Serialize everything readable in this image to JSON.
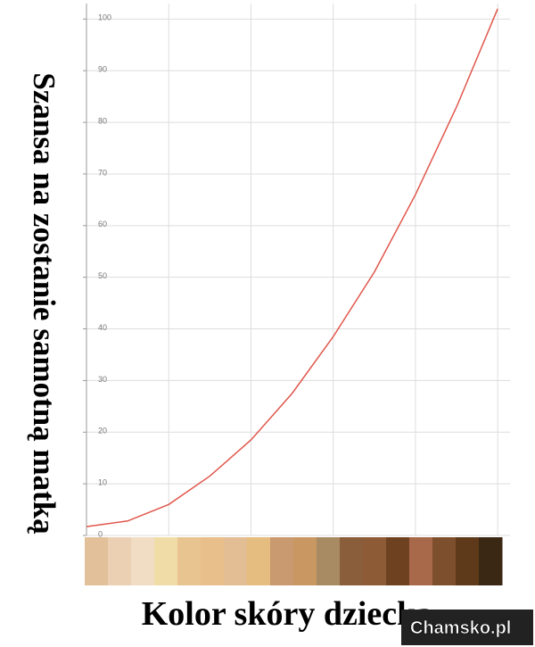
{
  "chart_data": {
    "type": "line",
    "ylabel": "Szansa na zostanie samotną matką",
    "xlabel": "Kolor skóry dziecka",
    "watermark": "Chamsko.pl",
    "x": [
      0,
      0.5,
      1,
      1.5,
      2,
      2.5,
      3,
      3.5,
      4,
      4.5,
      5
    ],
    "series": [
      {
        "color": "#e0574c",
        "values": [
          1.7,
          2.8,
          6,
          11.5,
          18.5,
          27.5,
          38.5,
          51,
          66,
          83,
          102
        ]
      }
    ],
    "xlim": [
      0,
      5.15
    ],
    "xgrid": [
      0,
      1,
      2,
      3,
      4,
      5
    ],
    "ylim": [
      0,
      103
    ],
    "yticks": [
      0,
      10,
      20,
      30,
      40,
      50,
      60,
      70,
      80,
      90,
      100
    ],
    "grid": true,
    "skin_colors": [
      "#e2c09a",
      "#ecd0b4",
      "#f1dcc4",
      "#f0dca6",
      "#e8c491",
      "#e8bf8a",
      "#e3bd93",
      "#e6bd80",
      "#c9996f",
      "#c99762",
      "#a88a63",
      "#8a5d3b",
      "#8d5c36",
      "#6e4220",
      "#a8694a",
      "#7d4f2d",
      "#5f3a1a",
      "#3a2815"
    ]
  }
}
